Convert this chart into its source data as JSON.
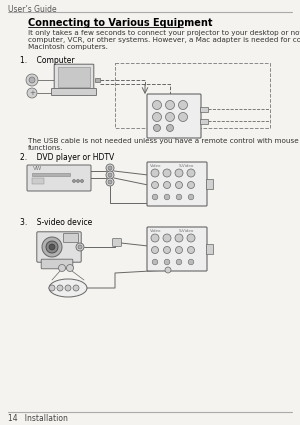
{
  "background_color": "#f5f3ef",
  "header_text": "User’s Guide",
  "header_fontsize": 5.5,
  "header_color": "#555555",
  "header_line_color": "#aaaaaa",
  "title": "Connecting to Various Equipment",
  "title_fontsize": 7.0,
  "title_color": "#000000",
  "body_text": "It only takes a few seconds to connect your projector to your desktop or notebook\ncomputer, VCR, or other systems. However, a Mac adapter is needed for connection to\nMacintosh computers.",
  "body_fontsize": 5.2,
  "body_color": "#333333",
  "item1_label": "1.    Computer",
  "item1_fontsize": 5.5,
  "item2_label": "2.    DVD player or HDTV",
  "item2_fontsize": 5.5,
  "item3_label": "3.    S-video device",
  "item3_fontsize": 5.5,
  "usb_note": "The USB cable is not needed unless you have a remote control with mouse\nfunctions.",
  "usb_note_fontsize": 5.2,
  "footer_text": "14   Installation",
  "footer_fontsize": 5.5,
  "footer_color": "#444444",
  "line_color": "#aaaaaa",
  "edge_color": "#666666",
  "fill_light": "#e8e8e8",
  "fill_mid": "#d0d0d0",
  "fill_dark": "#b0b0b0",
  "dashed_color": "#888888"
}
